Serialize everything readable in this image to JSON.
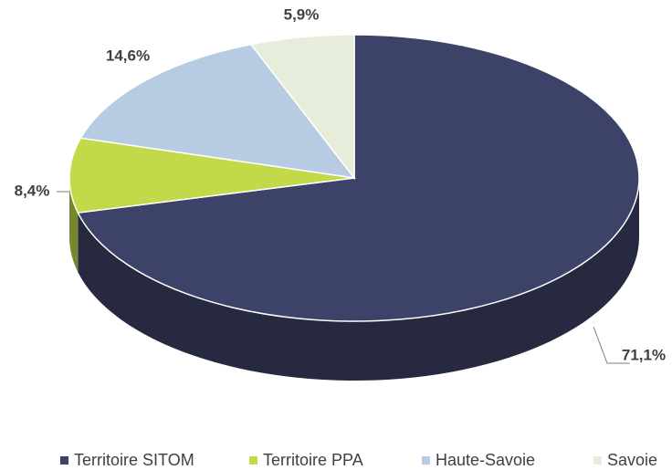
{
  "chart_data": {
    "type": "pie",
    "categories": [
      "Territoire SITOM",
      "Territoire PPA",
      "Haute-Savoie",
      "Savoie"
    ],
    "values": [
      71.1,
      8.4,
      14.6,
      5.9
    ],
    "value_labels": [
      "71,1%",
      "8,4%",
      "14,6%",
      "5,9%"
    ],
    "colors": [
      "#3d4268",
      "#c2d94a",
      "#b7cce2",
      "#e6eedb"
    ],
    "legend": "bottom"
  }
}
